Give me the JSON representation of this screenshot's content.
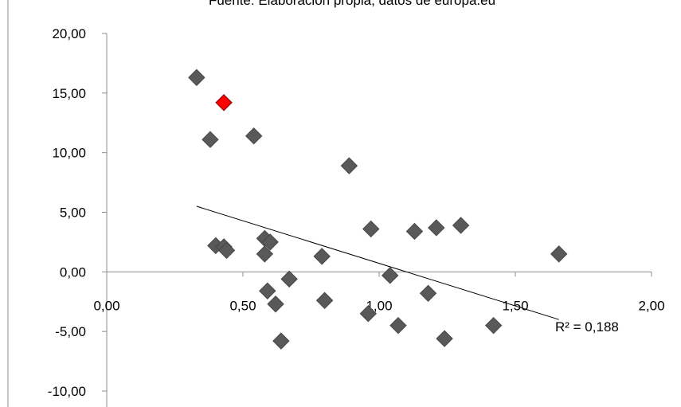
{
  "chart_data": {
    "type": "scatter",
    "title": "Fuente: Elaboración propia, datos de europa.eu",
    "xlabel": "",
    "ylabel": "",
    "xlim": [
      0,
      2
    ],
    "ylim": [
      -10,
      20
    ],
    "x_ticks": [
      "0,00",
      "0,50",
      "1,00",
      "1,50",
      "2,00"
    ],
    "y_ticks": [
      "20,00",
      "15,00",
      "10,00",
      "5,00",
      "0,00",
      "-5,00",
      "-10,00"
    ],
    "grid": false,
    "legend": "none",
    "marker": "diamond",
    "series": [
      {
        "color": "#595959",
        "points": [
          {
            "x": 0.33,
            "y": 16.3
          },
          {
            "x": 0.38,
            "y": 11.1
          },
          {
            "x": 0.54,
            "y": 11.4
          },
          {
            "x": 0.89,
            "y": 8.9
          },
          {
            "x": 0.97,
            "y": 3.6
          },
          {
            "x": 1.13,
            "y": 3.4
          },
          {
            "x": 1.21,
            "y": 3.7
          },
          {
            "x": 1.3,
            "y": 3.9
          },
          {
            "x": 1.66,
            "y": 1.5
          },
          {
            "x": 0.4,
            "y": 2.2
          },
          {
            "x": 0.43,
            "y": 2.1
          },
          {
            "x": 0.44,
            "y": 1.8
          },
          {
            "x": 0.58,
            "y": 2.8
          },
          {
            "x": 0.6,
            "y": 2.5
          },
          {
            "x": 0.58,
            "y": 1.5
          },
          {
            "x": 0.79,
            "y": 1.3
          },
          {
            "x": 1.04,
            "y": -0.3
          },
          {
            "x": 0.67,
            "y": -0.6
          },
          {
            "x": 0.59,
            "y": -1.6
          },
          {
            "x": 1.18,
            "y": -1.8
          },
          {
            "x": 0.62,
            "y": -2.7
          },
          {
            "x": 0.8,
            "y": -2.4
          },
          {
            "x": 0.96,
            "y": -3.5
          },
          {
            "x": 1.07,
            "y": -4.5
          },
          {
            "x": 1.42,
            "y": -4.5
          },
          {
            "x": 0.64,
            "y": -5.8
          },
          {
            "x": 1.24,
            "y": -5.6
          }
        ]
      },
      {
        "color": "#ff0000",
        "points": [
          {
            "x": 0.43,
            "y": 14.2
          }
        ]
      }
    ],
    "trendline": {
      "x0": 0.33,
      "y0": 5.5,
      "x1": 1.66,
      "y1": -4.0
    },
    "annotation": "R² = 0,188"
  }
}
